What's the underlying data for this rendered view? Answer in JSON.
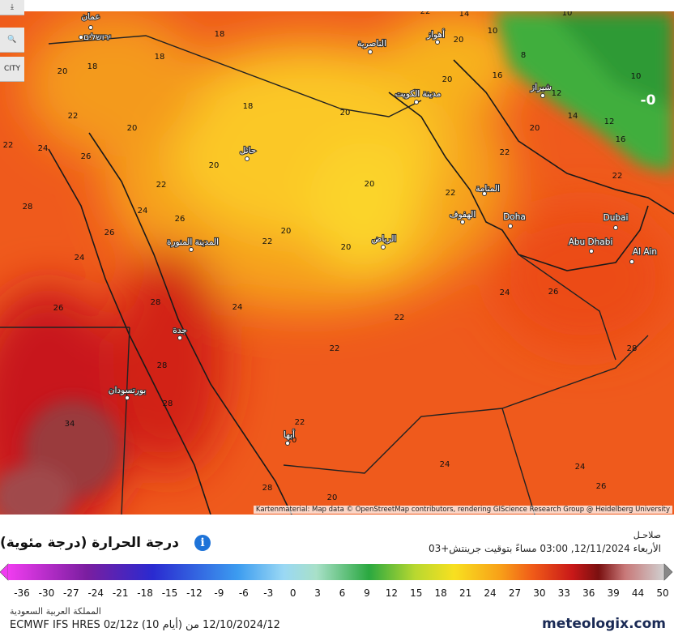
{
  "map": {
    "cities": [
      "عمان",
      "ירושלים",
      "الناصرية",
      "أهواز",
      "مدينة الكويت",
      "شيراز",
      "حائل",
      "المنامة",
      "الهفوف",
      "Doha",
      "Dubai",
      "Abu Dhabi",
      "Al Ain",
      "الرياض",
      "المدينة المنورة",
      "جدة",
      "بورتسودان",
      "أبها"
    ],
    "temperature_labels": [
      22,
      14,
      10,
      20,
      10,
      18,
      18,
      18,
      20,
      8,
      16,
      10,
      20,
      18,
      20,
      12,
      14,
      12,
      22,
      20,
      20,
      16,
      22,
      24,
      26,
      20,
      22,
      22,
      20,
      22,
      22,
      28,
      24,
      26,
      20,
      22,
      20,
      26,
      24,
      24,
      22,
      24,
      26,
      22,
      28,
      28,
      34,
      22,
      20,
      24,
      24,
      26,
      20,
      28,
      28,
      28,
      26
    ],
    "pressure_label": "-0",
    "city_button": "CITY",
    "attribution": "Kartenmaterial: Map data © OpenStreetMap contributors, rendering GIScience Research Group @ Heidelberg University"
  },
  "legend": {
    "title": "درجة الحرارة (درجة مئوية)",
    "valid_label": "صلاحـل",
    "valid_time": "الأربعاء 12/11/2024, 03:00 مساءً بتوقيت جرينتش+03",
    "scale_ticks": [
      -36,
      -30,
      -27,
      -24,
      -21,
      -18,
      -15,
      -12,
      -9,
      -6,
      -3,
      0,
      3,
      6,
      9,
      12,
      15,
      18,
      21,
      24,
      27,
      30,
      33,
      36,
      39,
      44,
      50
    ]
  },
  "footer": {
    "region": "المملكة العربية السعودية",
    "model": "ECMWF IFS HRES 0z/12z (10 أيام) 12/10/2024/12 من",
    "brand": "meteologix.com"
  }
}
